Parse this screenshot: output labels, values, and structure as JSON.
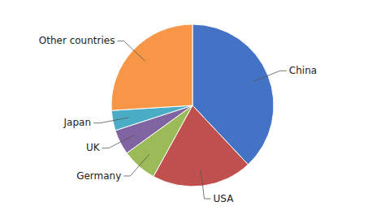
{
  "chart_data": {
    "type": "pie",
    "categories": [
      "China",
      "USA",
      "Germany",
      "UK",
      "Japan",
      "Other countries"
    ],
    "values": [
      38,
      20,
      7,
      5,
      4,
      26
    ],
    "colors": [
      "#4472C4",
      "#C0504D",
      "#9BBB59",
      "#8064A2",
      "#4BACC6",
      "#F79646"
    ]
  }
}
